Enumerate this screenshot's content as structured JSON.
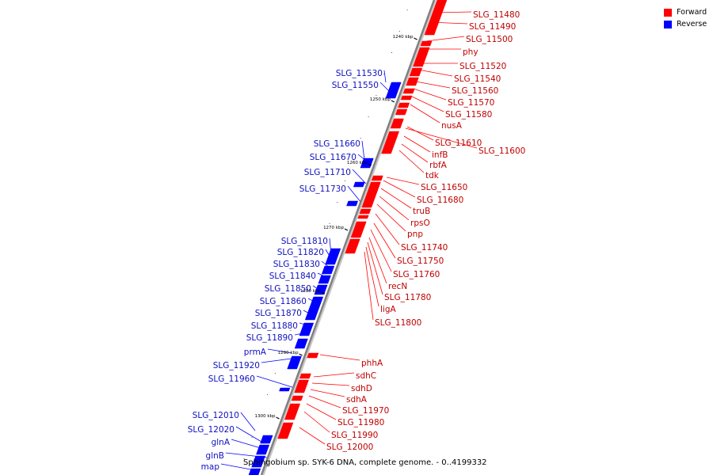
{
  "legend": {
    "forward_label": "Forward",
    "reverse_label": "Reverse"
  },
  "colors": {
    "forward": "#ff0000",
    "reverse": "#0000ff",
    "axis": "#808080"
  },
  "caption": "Sphingobium sp. SYK-6 DNA, complete genome. - 0..4199332",
  "ticks": [
    "1240 kbp",
    "1250 kbp",
    "1260 kbp",
    "1270 kbp",
    "1280 kbp",
    "1290 kbp",
    "1300 kbp"
  ],
  "forward_genes": [
    "SLG_11480",
    "SLG_11490",
    "SLG_11500",
    "phy",
    "SLG_11520",
    "SLG_11540",
    "SLG_11560",
    "SLG_11570",
    "SLG_11580",
    "nusA",
    "SLG_11610",
    "SLG_11600",
    "infB",
    "rbfA",
    "tdk",
    "SLG_11650",
    "SLG_11680",
    "truB",
    "rpsO",
    "pnp",
    "SLG_11740",
    "SLG_11750",
    "SLG_11760",
    "recN",
    "SLG_11780",
    "ligA",
    "SLG_11800",
    "phhA",
    "sdhC",
    "sdhD",
    "sdhA",
    "SLG_11970",
    "SLG_11980",
    "SLG_11990",
    "SLG_12000"
  ],
  "reverse_genes": [
    "SLG_11530",
    "SLG_11550",
    "SLG_11660",
    "SLG_11670",
    "SLG_11710",
    "SLG_11730",
    "SLG_11810",
    "SLG_11820",
    "SLG_11830",
    "SLG_11840",
    "SLG_11850",
    "SLG_11860",
    "SLG_11870",
    "SLG_11880",
    "SLG_11890",
    "prmA",
    "SLG_11920",
    "SLG_11960",
    "SLG_12010",
    "SLG_12020",
    "glnA",
    "glnB",
    "map"
  ]
}
